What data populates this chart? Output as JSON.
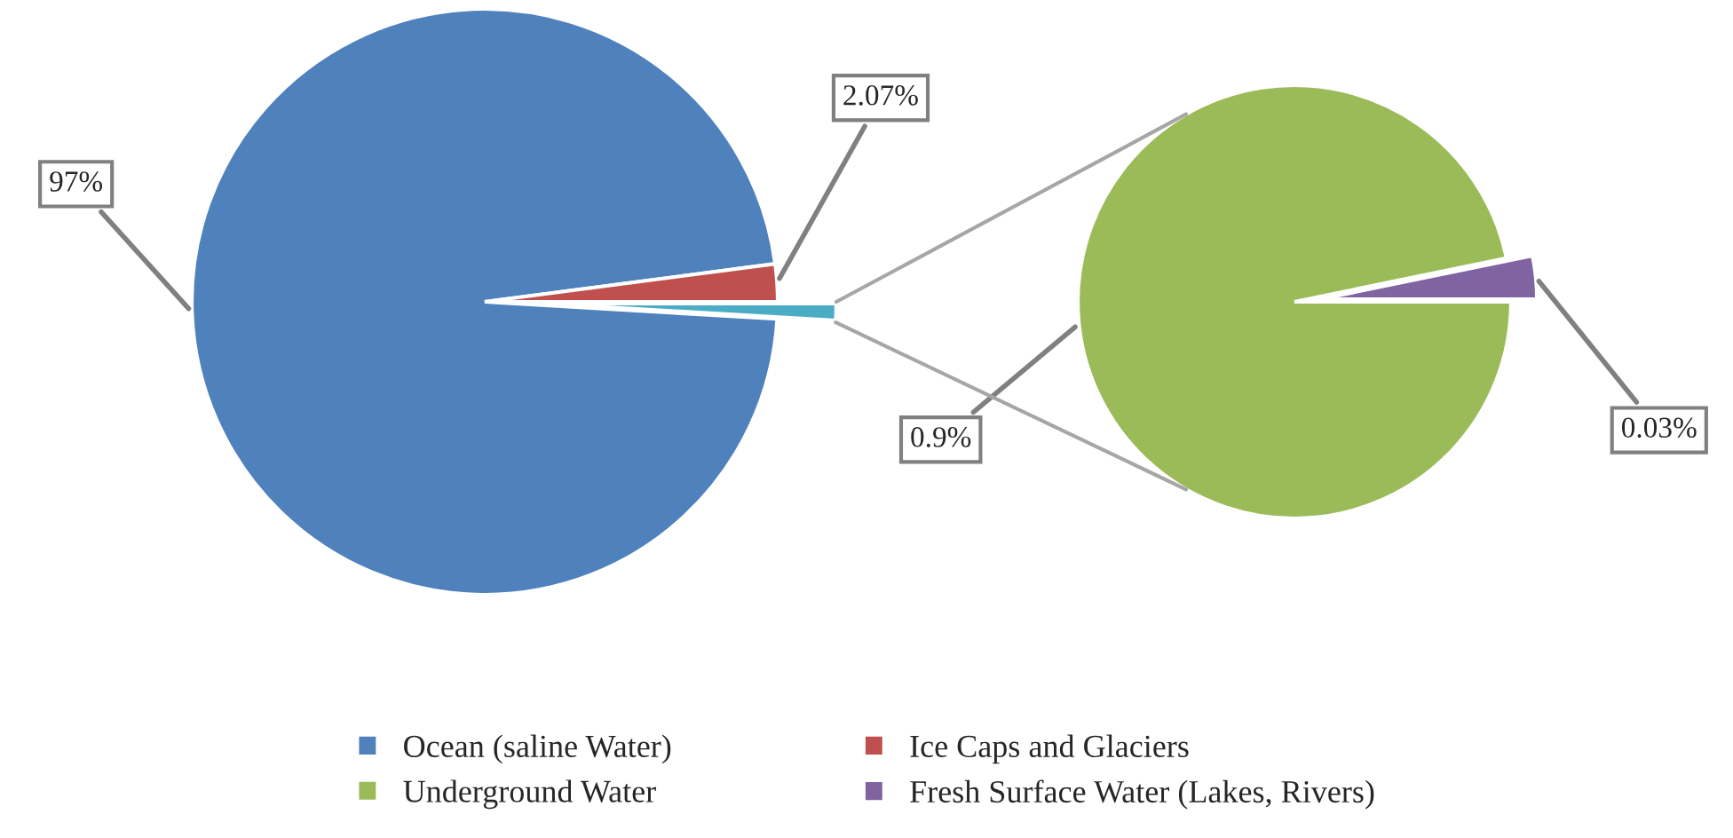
{
  "chart_data": [
    {
      "type": "pie",
      "categories": [
        "Ocean (saline Water)",
        "Ice Caps and Glaciers",
        null
      ],
      "values": [
        97,
        2.07,
        0.93
      ],
      "colors": [
        "#4f81bd",
        "#c0504d",
        "#4bacc6"
      ],
      "value_labels": [
        "97%",
        "2.07%",
        null
      ],
      "legend": "bottom"
    },
    {
      "type": "pie",
      "categories": [
        "Underground Water",
        "Fresh Surface Water (Lakes, Rivers)"
      ],
      "values": [
        0.9,
        0.03
      ],
      "colors": [
        "#9bbb59",
        "#8064a2"
      ],
      "value_labels": [
        "0.9%",
        "0.03%"
      ],
      "legend": "bottom"
    }
  ]
}
